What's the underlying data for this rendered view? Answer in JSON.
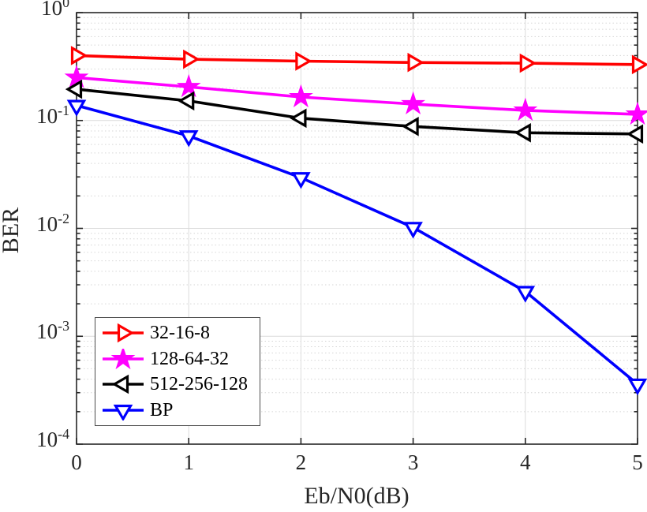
{
  "figure": {
    "background": "#ffffff",
    "axis_color": "#262626",
    "major_grid_color": "#dcdcdc",
    "minor_grid_color": "#d6d6d6"
  },
  "chart_data": {
    "type": "line",
    "title": "",
    "xlabel": "Eb/N0(dB)",
    "ylabel": "BER",
    "xlim": [
      0,
      5
    ],
    "ylim": [
      0.0001,
      1
    ],
    "yscale": "log",
    "x_ticks": [
      0,
      1,
      2,
      3,
      4,
      5
    ],
    "y_tick_exponents": [
      0,
      -1,
      -2,
      -3,
      -4
    ],
    "grid": "major solid on x and y, dotted minor grid on log y",
    "legend_position": "lower-left",
    "x": [
      0,
      1,
      2,
      3,
      4,
      5
    ],
    "series": [
      {
        "name": "32-16-8",
        "color": "#ff0000",
        "marker": "triangle-right",
        "values": [
          0.4,
          0.37,
          0.355,
          0.345,
          0.34,
          0.33
        ]
      },
      {
        "name": "128-64-32",
        "color": "#ff00ff",
        "marker": "pentagram",
        "values": [
          0.25,
          0.205,
          0.165,
          0.142,
          0.124,
          0.114
        ]
      },
      {
        "name": "512-256-128",
        "color": "#000000",
        "marker": "triangle-left",
        "values": [
          0.195,
          0.152,
          0.105,
          0.088,
          0.077,
          0.075
        ]
      },
      {
        "name": "BP",
        "color": "#0000ff",
        "marker": "triangle-down",
        "values": [
          0.138,
          0.072,
          0.0295,
          0.0102,
          0.0026,
          0.00036
        ]
      }
    ]
  }
}
